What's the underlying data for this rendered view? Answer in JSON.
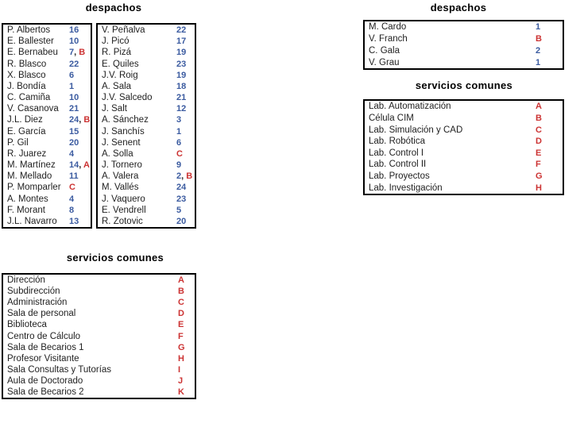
{
  "colors": {
    "number": "#3B5BA0",
    "letter": "#CC3333",
    "text": "#1F1F1F",
    "border": "#000000",
    "background": "#FFFFFF"
  },
  "sections": {
    "left_despachos": {
      "title": "despachos"
    },
    "left_servicios": {
      "title": "servicios comunes"
    },
    "right_despachos": {
      "title": "despachos"
    },
    "right_servicios": {
      "title": "servicios comunes"
    }
  },
  "tables": {
    "despachos_col1": {
      "rows": [
        {
          "name": "P. Albertos",
          "num": "16"
        },
        {
          "name": "E. Ballester",
          "num": "10"
        },
        {
          "name": "E. Bernabeu",
          "num": "7",
          "letter": "B"
        },
        {
          "name": "R. Blasco",
          "num": "22"
        },
        {
          "name": "X. Blasco",
          "num": "6"
        },
        {
          "name": "J. Bondía",
          "num": "1"
        },
        {
          "name": "C. Camiña",
          "num": "10"
        },
        {
          "name": "V. Casanova",
          "num": "21"
        },
        {
          "name": "J.L. Diez",
          "num": "24",
          "letter": "B"
        },
        {
          "name": "E. García",
          "num": "15"
        },
        {
          "name": "P. Gil",
          "num": "20"
        },
        {
          "name": "R. Juarez",
          "num": "4"
        },
        {
          "name": "M. Martínez",
          "num": "14",
          "letter": "A"
        },
        {
          "name": "M. Mellado",
          "num": "11"
        },
        {
          "name": "P. Momparler",
          "letter": "C"
        },
        {
          "name": "A. Montes",
          "num": "4"
        },
        {
          "name": "F. Morant",
          "num": "8"
        },
        {
          "name": "J.L. Navarro",
          "num": "13"
        }
      ]
    },
    "despachos_col2": {
      "rows": [
        {
          "name": "V. Peñalva",
          "num": "22"
        },
        {
          "name": "J. Picó",
          "num": "17"
        },
        {
          "name": "R. Pizá",
          "num": "19"
        },
        {
          "name": "E. Quiles",
          "num": "23"
        },
        {
          "name": "J.V. Roig",
          "num": "19"
        },
        {
          "name": "A. Sala",
          "num": "18"
        },
        {
          "name": "J.V. Salcedo",
          "num": "21"
        },
        {
          "name": "J. Salt",
          "num": "12"
        },
        {
          "name": "A. Sánchez",
          "num": "3"
        },
        {
          "name": "J. Sanchís",
          "num": "1"
        },
        {
          "name": "J. Senent",
          "num": "6"
        },
        {
          "name": "A. Solla",
          "letter": "C"
        },
        {
          "name": "J. Tornero",
          "num": "9"
        },
        {
          "name": "A. Valera",
          "num": "2",
          "letter": "B"
        },
        {
          "name": "M. Vallés",
          "num": "24"
        },
        {
          "name": "J. Vaquero",
          "num": "23"
        },
        {
          "name": "E. Vendrell",
          "num": "5"
        },
        {
          "name": "R. Zotovic",
          "num": "20"
        }
      ]
    },
    "despachos_right": {
      "rows": [
        {
          "name": "M. Cardo",
          "num": "1"
        },
        {
          "name": "V. Franch",
          "letter": "B"
        },
        {
          "name": "C. Gala",
          "num": "2"
        },
        {
          "name": "V. Grau",
          "num": "1"
        }
      ]
    },
    "servicios_right": {
      "rows": [
        {
          "name": "Lab. Automatización",
          "letter": "A"
        },
        {
          "name": "Célula CIM",
          "letter": "B"
        },
        {
          "name": "Lab. Simulación y CAD",
          "letter": "C"
        },
        {
          "name": "Lab. Robótica",
          "letter": "D"
        },
        {
          "name": "Lab. Control I",
          "letter": "E"
        },
        {
          "name": "Lab. Control II",
          "letter": "F"
        },
        {
          "name": "Lab. Proyectos",
          "letter": "G"
        },
        {
          "name": "Lab. Investigación",
          "letter": "H"
        }
      ]
    },
    "servicios_left": {
      "rows": [
        {
          "name": "Dirección",
          "letter": "A"
        },
        {
          "name": "Subdirección",
          "letter": "B"
        },
        {
          "name": "Administración",
          "letter": "C"
        },
        {
          "name": "Sala de personal",
          "letter": "D"
        },
        {
          "name": "Biblioteca",
          "letter": "E"
        },
        {
          "name": "Centro de Cálculo",
          "letter": "F"
        },
        {
          "name": "Sala de Becarios 1",
          "letter": "G"
        },
        {
          "name": "Profesor Visitante",
          "letter": "H"
        },
        {
          "name": "Sala Consultas y Tutorías",
          "letter": "I"
        },
        {
          "name": "Aula de Doctorado",
          "letter": "J"
        },
        {
          "name": "Sala de Becarios 2",
          "letter": "K"
        }
      ]
    }
  }
}
